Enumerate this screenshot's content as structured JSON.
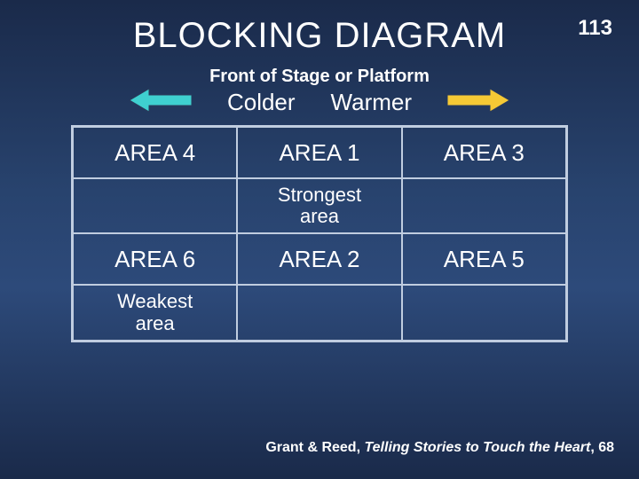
{
  "page_number": "113",
  "title": "BLOCKING DIAGRAM",
  "subtitle": "Front of Stage or Platform",
  "temperature": {
    "left_label": "Colder",
    "right_label": "Warmer",
    "left_arrow_color": "#3fd0d0",
    "right_arrow_color": "#f5c935"
  },
  "grid": {
    "border_color": "#c0cde0",
    "rows": [
      {
        "cells": [
          "AREA 4",
          "AREA 1",
          "AREA 3"
        ],
        "note": false
      },
      {
        "cells": [
          "",
          "Strongest area",
          ""
        ],
        "note": true
      },
      {
        "cells": [
          "AREA 6",
          "AREA 2",
          "AREA 5"
        ],
        "note": false
      },
      {
        "cells": [
          "Weakest area",
          "",
          ""
        ],
        "note": true
      }
    ]
  },
  "citation": {
    "authors": "Grant & Reed, ",
    "book": "Telling Stories to Touch the Heart",
    "page": ", 68"
  },
  "colors": {
    "text": "#ffffff",
    "bg_top": "#1a2a4a",
    "bg_mid": "#2d4a7a"
  },
  "fonts": {
    "title_size": 40,
    "subtitle_size": 20,
    "cell_size": 26,
    "note_size": 22,
    "citation_size": 16
  }
}
